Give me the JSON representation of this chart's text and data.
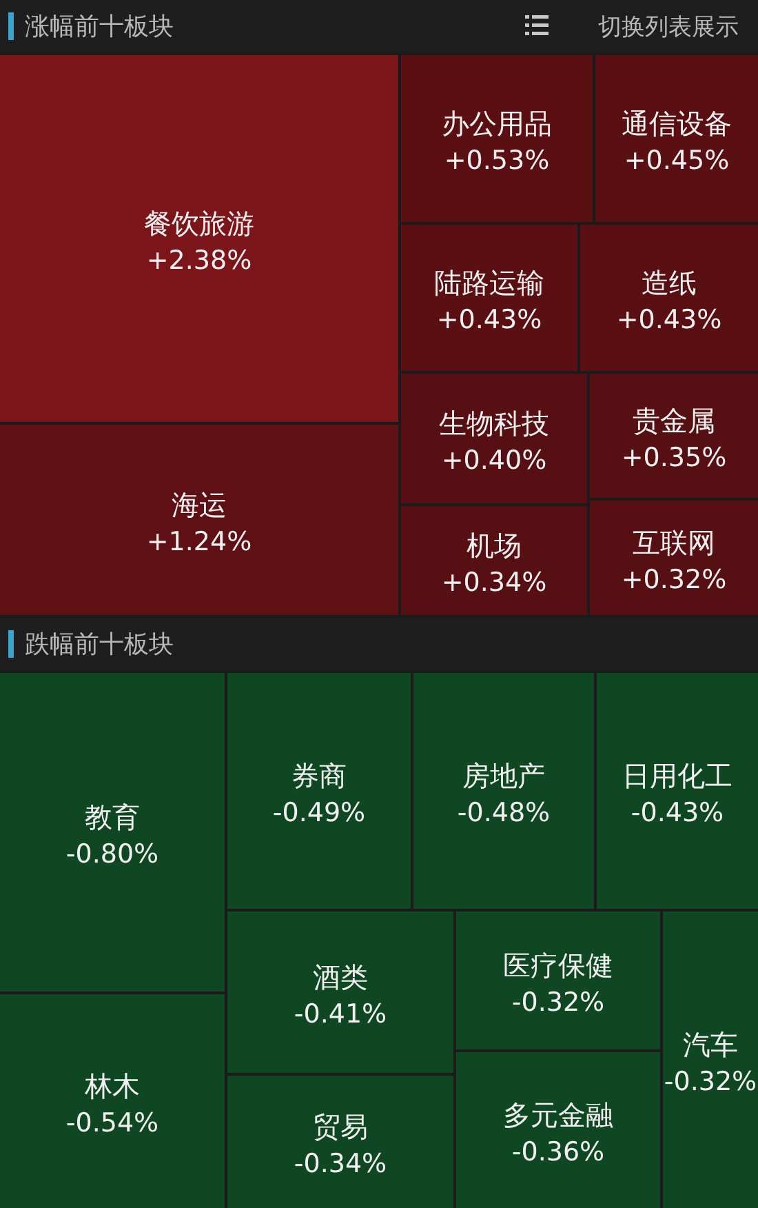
{
  "chart_data": [
    {
      "type": "other",
      "title": "涨幅前十板块",
      "annotations": [
        "切换列表展示"
      ],
      "categories": [
        "餐饮旅游",
        "海运",
        "办公用品",
        "通信设备",
        "陆路运输",
        "造纸",
        "生物科技",
        "机场",
        "贵金属",
        "互联网"
      ],
      "values": [
        2.38,
        1.24,
        0.53,
        0.45,
        0.43,
        0.43,
        0.4,
        0.34,
        0.35,
        0.32
      ],
      "value_labels": [
        "+2.38%",
        "+1.24%",
        "+0.53%",
        "+0.45%",
        "+0.43%",
        "+0.43%",
        "+0.40%",
        "+0.34%",
        "+0.35%",
        "+0.32%"
      ],
      "colors": [
        "#7c1519",
        "#5f1014",
        "#5a0f13",
        "#5a0f13",
        "#5a0f13",
        "#5a0f13",
        "#560f13",
        "#560f13",
        "#560f13",
        "#560f13"
      ]
    },
    {
      "type": "other",
      "title": "跌幅前十板块",
      "categories": [
        "教育",
        "林木",
        "券商",
        "房地产",
        "日用化工",
        "酒类",
        "贸易",
        "医疗保健",
        "多元金融",
        "汽车"
      ],
      "values": [
        -0.8,
        -0.54,
        -0.49,
        -0.48,
        -0.43,
        -0.41,
        -0.34,
        -0.32,
        -0.36,
        -0.32
      ],
      "value_labels": [
        "-0.80%",
        "-0.54%",
        "-0.49%",
        "-0.48%",
        "-0.43%",
        "-0.41%",
        "-0.34%",
        "-0.32%",
        "-0.36%",
        "-0.32%"
      ],
      "colors": [
        "#0f4722",
        "#0f4722",
        "#0f4722",
        "#0f4722",
        "#0f4722",
        "#0f4722",
        "#0f4722",
        "#0f4722",
        "#0f4722",
        "#0f4722"
      ]
    }
  ]
}
